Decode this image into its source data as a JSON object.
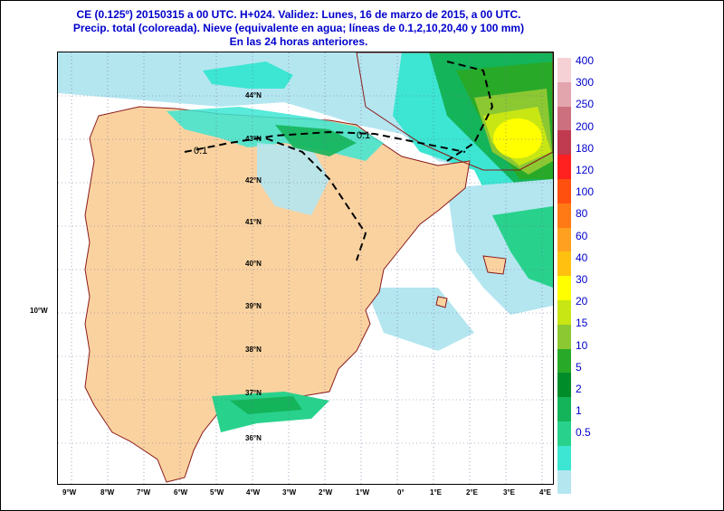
{
  "title": {
    "line1": "CE (0.125º) 20150315 a 00 UTC.  H+024. Validez: Lunes, 16 de marzo de 2015,  a  00 UTC.",
    "line2": "Precip. total (coloreada). Nieve (equivalente en agua; líneas de 0.1,2,10,20,40 y 100 mm)",
    "line3": "En las 24 horas anteriores."
  },
  "x_axis_labels": [
    "9°W",
    "8°W",
    "7°W",
    "6°W",
    "5°W",
    "4°W",
    "3°W",
    "2°W",
    "1°W",
    "0°",
    "1°E",
    "2°E",
    "3°E",
    "4°E"
  ],
  "lat_labels": [
    "44°N",
    "43°N",
    "42°N",
    "41°N",
    "40°N",
    "39°N",
    "38°N",
    "37°N",
    "36°N"
  ],
  "side_label": "10°W",
  "contour_label": "0.1",
  "legend": {
    "labels": [
      "400",
      "300",
      "250",
      "200",
      "180",
      "120",
      "100",
      "80",
      "60",
      "40",
      "30",
      "20",
      "15",
      "10",
      "5",
      "2",
      "1",
      "0.5"
    ],
    "colors": [
      "#f5d0d5",
      "#e3a5ad",
      "#cc7080",
      "#c03a50",
      "#ff2020",
      "#ff5010",
      "#ff7a14",
      "#ffa020",
      "#ffc010",
      "#ffff00",
      "#c8e614",
      "#8cc832",
      "#28aa28",
      "#008c28",
      "#14b45a",
      "#28d28c",
      "#3ce6d2",
      "#b4e6f0"
    ]
  }
}
